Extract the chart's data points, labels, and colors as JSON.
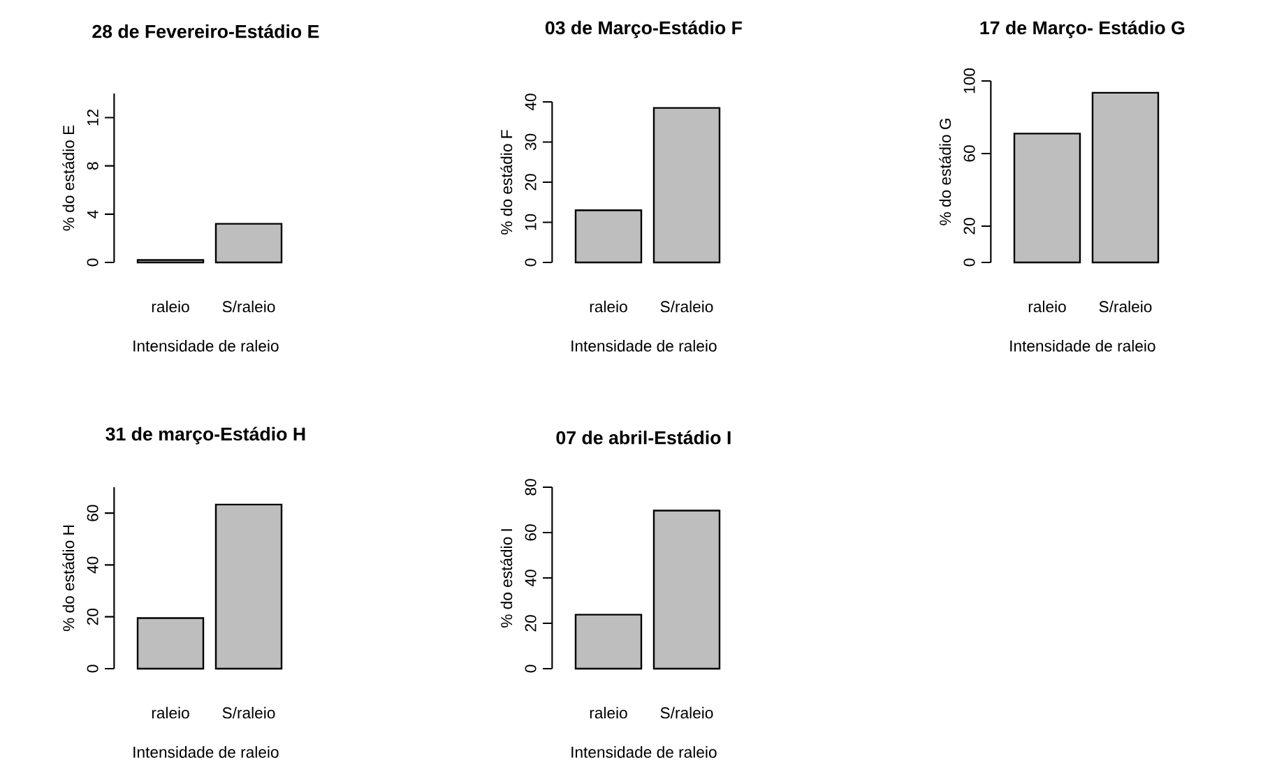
{
  "chart_data": [
    {
      "type": "bar",
      "title": "28 de Fevereiro-Estádio E",
      "xlabel": "Intensidade de raleio",
      "ylabel": "% do estádio E",
      "categories": [
        "raleio",
        "S/raleio"
      ],
      "values": [
        0.2,
        3.2
      ],
      "color": "#bebebe",
      "ylim": [
        0,
        14
      ],
      "yticks": [
        0,
        4,
        8,
        12
      ]
    },
    {
      "type": "bar",
      "title": "03 de Março-Estádio F",
      "xlabel": "Intensidade de raleio",
      "ylabel": "% do estádio F",
      "categories": [
        "raleio",
        "S/raleio"
      ],
      "values": [
        13,
        38.5
      ],
      "color": "#bebebe",
      "ylim": [
        0,
        40
      ],
      "yticks": [
        0,
        10,
        20,
        30,
        40
      ]
    },
    {
      "type": "bar",
      "title": "17 de Março- Estádio G",
      "xlabel": "Intensidade de raleio",
      "ylabel": "% do estádio G",
      "categories": [
        "raleio",
        "S/raleio"
      ],
      "values": [
        71,
        93.5
      ],
      "color": "#bebebe",
      "ylim": [
        0,
        100
      ],
      "yticks": [
        0,
        20,
        60,
        100
      ]
    },
    {
      "type": "bar",
      "title": "31 de março-Estádio H",
      "xlabel": "Intensidade de raleio",
      "ylabel": "% do estádio H",
      "categories": [
        "raleio",
        "S/raleio"
      ],
      "values": [
        19.5,
        63.3
      ],
      "color": "#bebebe",
      "ylim": [
        0,
        70
      ],
      "yticks": [
        0,
        20,
        40,
        60
      ]
    },
    {
      "type": "bar",
      "title": "07 de abril-Estádio I",
      "xlabel": "Intensidade de raleio",
      "ylabel": "% do estádio I",
      "categories": [
        "raleio",
        "S/raleio"
      ],
      "values": [
        23.8,
        69.7
      ],
      "color": "#bebebe",
      "ylim": [
        0,
        80
      ],
      "yticks": [
        0,
        20,
        40,
        60,
        80
      ]
    }
  ]
}
